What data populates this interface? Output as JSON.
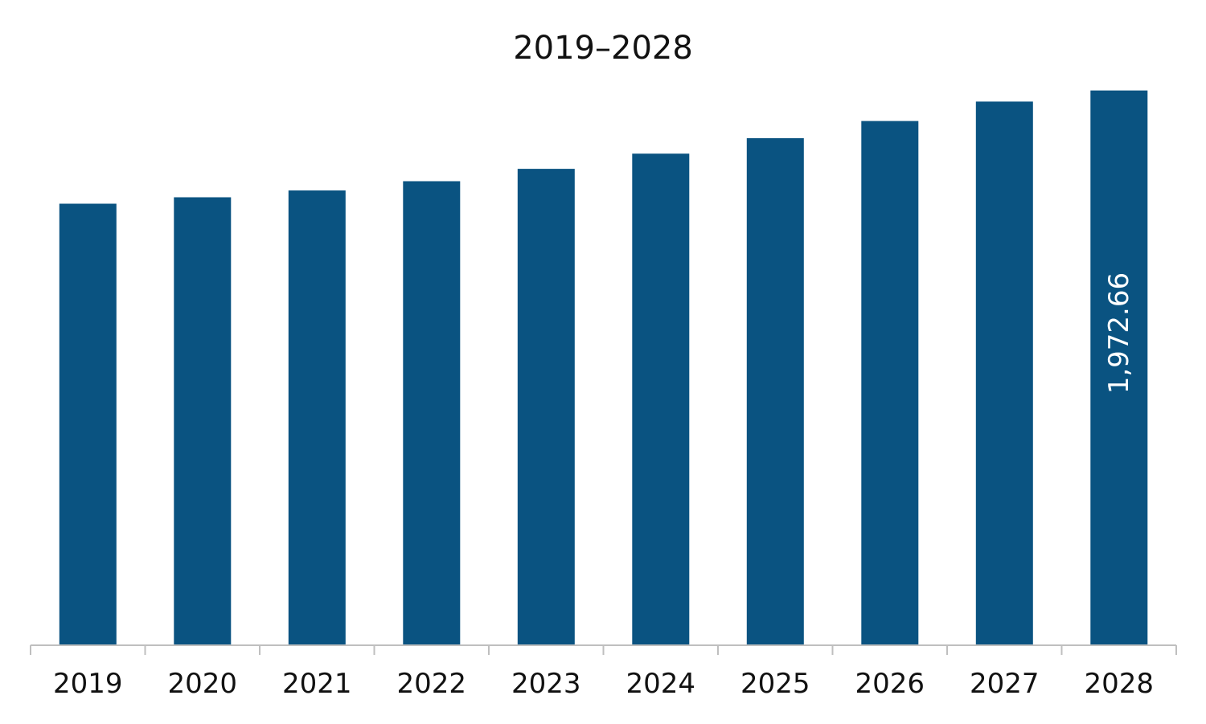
{
  "colors": {
    "bar": "#0a5381",
    "axis": "#bfbfbf",
    "text": "#111111",
    "data_label": "#ffffff",
    "background": "#ffffff"
  },
  "chart_data": {
    "type": "bar",
    "title": "2019–2028",
    "xlabel": "",
    "ylabel": "",
    "categories": [
      "2019",
      "2020",
      "2021",
      "2022",
      "2023",
      "2024",
      "2025",
      "2026",
      "2027",
      "2028"
    ],
    "values": [
      1570,
      1593,
      1617,
      1650,
      1694,
      1748,
      1803,
      1864,
      1933,
      1972.66
    ],
    "ylim": [
      0,
      2000
    ],
    "grid": false,
    "legend": "none",
    "data_labels": [
      {
        "category": "2028",
        "text": "1,972.66",
        "orientation": "vertical"
      }
    ]
  }
}
